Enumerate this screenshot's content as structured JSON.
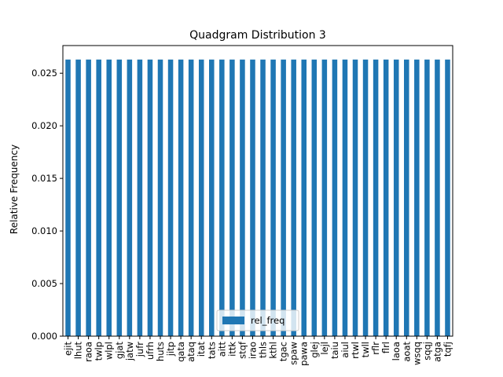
{
  "chart_data": {
    "type": "bar",
    "title": "Quadgram Distribution 3",
    "xlabel": "",
    "ylabel": "Relative Frequency",
    "categories": [
      "ejit",
      "lhut",
      "raoa",
      "twlp",
      "wlpl",
      "gjat",
      "jatw",
      "jufr",
      "ufrh",
      "huts",
      "jitp",
      "qata",
      "ataq",
      "itat",
      "tats",
      "aitt",
      "ittk",
      "stqf",
      "irao",
      "thls",
      "kthl",
      "tgac",
      "spaw",
      "pawa",
      "glej",
      "lejl",
      "taiu",
      "aiul",
      "rtwl",
      "twll",
      "rflr",
      "flrl",
      "laoa",
      "aoat",
      "wsqq",
      "sqqj",
      "atga",
      "tqfj"
    ],
    "series": [
      {
        "name": "rel_freq",
        "color": "#1f77b4",
        "values": [
          0.0263,
          0.0263,
          0.0263,
          0.0263,
          0.0263,
          0.0263,
          0.0263,
          0.0263,
          0.0263,
          0.0263,
          0.0263,
          0.0263,
          0.0263,
          0.0263,
          0.0263,
          0.0263,
          0.0263,
          0.0263,
          0.0263,
          0.0263,
          0.0263,
          0.0263,
          0.0263,
          0.0263,
          0.0263,
          0.0263,
          0.0263,
          0.0263,
          0.0263,
          0.0263,
          0.0263,
          0.0263,
          0.0263,
          0.0263,
          0.0263,
          0.0263,
          0.0263,
          0.0263
        ]
      }
    ],
    "ylim": [
      0,
      0.02763
    ],
    "yticks": [
      0.0,
      0.005,
      0.01,
      0.015,
      0.02,
      0.025
    ],
    "ytick_labels": [
      "0.000",
      "0.005",
      "0.010",
      "0.015",
      "0.020",
      "0.025"
    ],
    "grid": false,
    "legend_position": "lower center"
  }
}
